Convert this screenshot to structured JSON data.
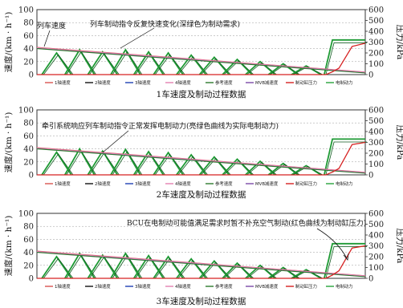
{
  "figure": {
    "left_axis_label": "速度/(km · h⁻¹)",
    "right_axis_label": "压力/kPa",
    "legend": [
      {
        "label": "1轴速度",
        "color": "#d9534f"
      },
      {
        "label": "2轴速度",
        "color": "#111111"
      },
      {
        "label": "3轴速度",
        "color": "#1f3fb4"
      },
      {
        "label": "4轴速度",
        "color": "#e37fb0"
      },
      {
        "label": "参考速度",
        "color": "#2c7a2c"
      },
      {
        "label": "MVB减速度",
        "color": "#7b4aa8"
      },
      {
        "label": "制动缸压力",
        "color": "#d62020"
      },
      {
        "label": "电制动力",
        "color": "#26a33a"
      }
    ]
  },
  "chart_data": [
    {
      "type": "line",
      "title": "1车速度及制动过程数据",
      "ylabel": "速度/(km · h⁻¹)",
      "y2label": "压力/kPa",
      "ylim": [
        0,
        100
      ],
      "y2lim": [
        0,
        600
      ],
      "yticks": [
        0,
        20,
        40,
        60,
        80,
        100
      ],
      "y2ticks": [
        0,
        100,
        200,
        300,
        400,
        500,
        600
      ],
      "annotations": [
        {
          "text": "列车速度",
          "points_to": "speed-curves"
        },
        {
          "text": "列车制动指令反复快速变化(深绿色为制动需求)",
          "points_to": "electric-braking-force"
        }
      ],
      "series": [
        {
          "name": "1轴速度",
          "x": [
            0,
            100
          ],
          "y": [
            42,
            4
          ]
        },
        {
          "name": "2轴速度",
          "x": [
            0,
            100
          ],
          "y": [
            41,
            3
          ]
        },
        {
          "name": "3轴速度",
          "x": [
            0,
            100
          ],
          "y": [
            40.5,
            3.5
          ]
        },
        {
          "name": "4轴速度",
          "x": [
            0,
            100
          ],
          "y": [
            41.5,
            3.8
          ]
        },
        {
          "name": "参考速度",
          "x": [
            0,
            100
          ],
          "y": [
            40,
            2.5
          ]
        },
        {
          "name": "制动缸压力",
          "x": [
            0,
            88,
            90,
            92,
            96,
            100
          ],
          "y": [
            0,
            0,
            25,
            60,
            260,
            290
          ]
        },
        {
          "name": "电制动力",
          "pulses_x": [
            6,
            13,
            20,
            27,
            34,
            40,
            47,
            54,
            61,
            68,
            75,
            82,
            91
          ],
          "pulses_y": [
            200,
            230,
            210,
            230,
            210,
            200,
            180,
            160,
            140,
            120,
            100,
            80,
            320
          ]
        }
      ]
    },
    {
      "type": "line",
      "title": "2车速度及制动过程数据",
      "ylabel": "速度/(km · h⁻¹)",
      "y2label": "压力/kPa",
      "ylim": [
        0,
        100
      ],
      "y2lim": [
        0,
        600
      ],
      "yticks": [
        0,
        20,
        40,
        60,
        80,
        100
      ],
      "y2ticks": [
        0,
        100,
        200,
        300,
        400,
        500,
        600
      ],
      "annotations": [
        {
          "text": "牵引系统响应列车制动指令正常发挥电制动力(亮绿色曲线为实际电制动力)",
          "points_to": "electric-braking-force"
        }
      ],
      "series": [
        {
          "name": "1轴速度",
          "x": [
            0,
            100
          ],
          "y": [
            42,
            4
          ]
        },
        {
          "name": "2轴速度",
          "x": [
            0,
            100
          ],
          "y": [
            41,
            3
          ]
        },
        {
          "name": "3轴速度",
          "x": [
            0,
            100
          ],
          "y": [
            40.5,
            3.5
          ]
        },
        {
          "name": "4轴速度",
          "x": [
            0,
            100
          ],
          "y": [
            41.5,
            3.8
          ]
        },
        {
          "name": "参考速度",
          "x": [
            0,
            100
          ],
          "y": [
            40,
            2.5
          ]
        },
        {
          "name": "制动缸压力",
          "x": [
            0,
            88,
            90,
            92,
            96,
            100
          ],
          "y": [
            0,
            0,
            25,
            60,
            280,
            300
          ]
        },
        {
          "name": "电制动力",
          "pulses_x": [
            6,
            13,
            20,
            27,
            34,
            40,
            47,
            54,
            61,
            68,
            75,
            82,
            91
          ],
          "pulses_y": [
            210,
            240,
            220,
            235,
            215,
            205,
            185,
            165,
            145,
            125,
            105,
            85,
            330
          ]
        }
      ]
    },
    {
      "type": "line",
      "title": "3车速度及制动过程数据",
      "ylabel": "速度/(km · h⁻¹)",
      "y2label": "压力/kPa",
      "ylim": [
        0,
        100
      ],
      "y2lim": [
        0,
        600
      ],
      "yticks": [
        0,
        20,
        40,
        60,
        80,
        100
      ],
      "y2ticks": [
        0,
        100,
        200,
        300,
        400,
        500,
        600
      ],
      "annotations": [
        {
          "text": "BCU在电制动可能值满足需求时暂不补充空气制动(红色曲线为制动缸压力)",
          "points_to": "brake-cylinder-pressure"
        }
      ],
      "series": [
        {
          "name": "1轴速度",
          "x": [
            0,
            100
          ],
          "y": [
            42,
            4
          ]
        },
        {
          "name": "2轴速度",
          "x": [
            0,
            100
          ],
          "y": [
            41,
            3
          ]
        },
        {
          "name": "3轴速度",
          "x": [
            0,
            100
          ],
          "y": [
            40.5,
            3.5
          ]
        },
        {
          "name": "4轴速度",
          "x": [
            0,
            100
          ],
          "y": [
            41.5,
            3.8
          ]
        },
        {
          "name": "参考速度",
          "x": [
            0,
            100
          ],
          "y": [
            40,
            2.5
          ]
        },
        {
          "name": "制动缸压力",
          "x": [
            0,
            88,
            90,
            92,
            96,
            100
          ],
          "y": [
            0,
            0,
            30,
            70,
            280,
            300
          ]
        },
        {
          "name": "电制动力",
          "pulses_x": [
            6,
            13,
            20,
            27,
            34,
            40,
            47,
            54,
            61,
            68,
            75,
            82,
            91
          ],
          "pulses_y": [
            200,
            230,
            215,
            230,
            210,
            200,
            180,
            160,
            140,
            120,
            100,
            80,
            320
          ]
        }
      ]
    }
  ]
}
